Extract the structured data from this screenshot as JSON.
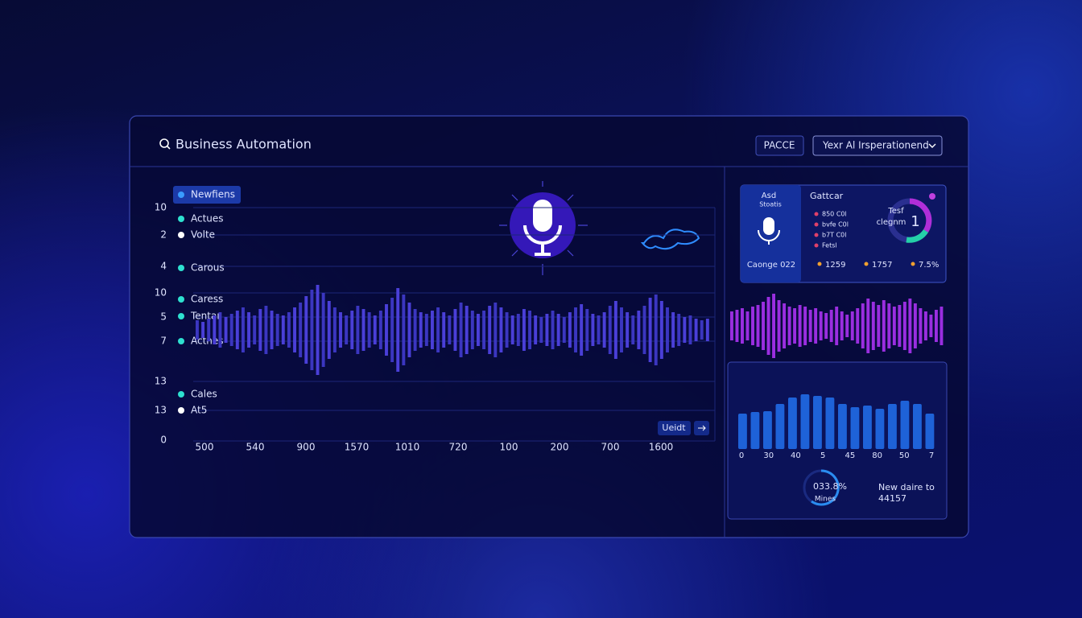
{
  "header": {
    "title": "Business Automation",
    "button": "PACCE",
    "dropdown": "Yexr Al Irsperationend"
  },
  "main_chart": {
    "legend": [
      "Newfiens",
      "Actues",
      "Volte",
      "Carous",
      "Caress",
      "Tentar",
      "Actnes",
      "Cales",
      "At5"
    ],
    "y_labels": [
      "10",
      "2",
      "4",
      "10",
      "5",
      "7",
      "13",
      "13",
      "0"
    ],
    "x_labels": [
      "500",
      "540",
      "900",
      "1570",
      "1010",
      "720",
      "100",
      "200",
      "700",
      "1600"
    ],
    "wave": [
      12,
      10,
      14,
      18,
      22,
      16,
      20,
      24,
      28,
      22,
      18,
      26,
      30,
      24,
      20,
      18,
      22,
      28,
      34,
      42,
      50,
      56,
      46,
      36,
      28,
      22,
      18,
      24,
      30,
      26,
      22,
      18,
      24,
      32,
      40,
      52,
      44,
      34,
      26,
      22,
      20,
      24,
      28,
      22,
      18,
      26,
      34,
      30,
      24,
      20,
      24,
      30,
      34,
      28,
      22,
      18,
      20,
      26,
      24,
      18,
      16,
      20,
      24,
      20,
      16,
      22,
      28,
      32,
      26,
      20,
      18,
      22,
      30,
      36,
      28,
      22,
      18,
      24,
      30,
      40,
      44,
      36,
      28,
      22,
      20,
      16,
      18,
      14,
      12,
      14
    ],
    "edit_button": "Ueidt"
  },
  "summary_card": {
    "label": "Asd",
    "sublabel": "Stoatis",
    "footer": "Caonge 022",
    "title": "Gattcar",
    "items": [
      "850 C0l",
      "bvfe C0l",
      "b7T C0l",
      "Fetsl"
    ],
    "donut_label": "Tesf",
    "donut_sublabel": "clegnm",
    "donut_value": "1",
    "stats": [
      "1259",
      "1757",
      "7.5%"
    ]
  },
  "activity_bars": [
    18,
    20,
    22,
    18,
    24,
    26,
    30,
    36,
    40,
    32,
    28,
    24,
    22,
    26,
    24,
    20,
    22,
    18,
    16,
    20,
    24,
    18,
    14,
    18,
    22,
    28,
    34,
    30,
    26,
    32,
    28,
    24,
    26,
    30,
    34,
    28,
    22,
    18,
    14,
    20,
    24
  ],
  "bar_chart": {
    "values": [
      44,
      46,
      47,
      56,
      64,
      68,
      66,
      64,
      56,
      52,
      54,
      50,
      56,
      60,
      56,
      44
    ],
    "x_labels": [
      "0",
      "30",
      "40",
      "5",
      "45",
      "80",
      "50",
      "7"
    ],
    "gauge_value": "033.8%",
    "gauge_label": "Mines",
    "note": "New daire to",
    "note_value": "44157"
  }
}
